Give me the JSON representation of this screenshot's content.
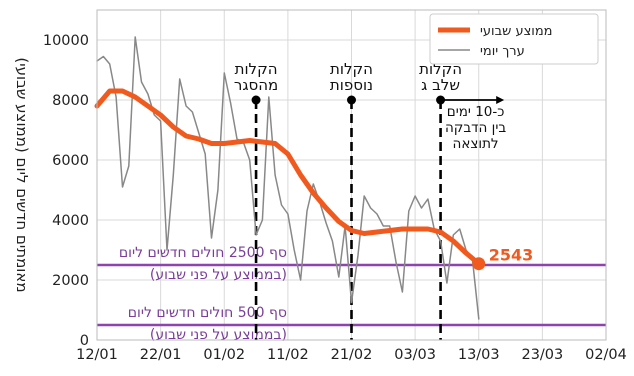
{
  "chart_data": {
    "type": "line",
    "title": "",
    "ylabel": "מאומתים חדשים ליום (ממוצע שבועי)",
    "xlabel": "",
    "x_ticks": [
      "12/01",
      "22/01",
      "01/02",
      "11/02",
      "21/02",
      "03/03",
      "13/03",
      "23/03",
      "02/04"
    ],
    "y_ticks": [
      "0",
      "2000",
      "4000",
      "6000",
      "8000",
      "10000"
    ],
    "ylim": [
      0,
      11000
    ],
    "grid": true,
    "legend": {
      "placement": "top-right",
      "entries": [
        "ממוצע שבועי",
        "ערך יומי"
      ]
    },
    "series": [
      {
        "name": "ממוצע שבועי",
        "color": "#f05a1e",
        "x": [
          "12/01",
          "14/01",
          "16/01",
          "18/01",
          "20/01",
          "22/01",
          "24/01",
          "26/01",
          "28/01",
          "30/01",
          "01/02",
          "03/02",
          "05/02",
          "07/02",
          "09/02",
          "11/02",
          "13/02",
          "15/02",
          "17/02",
          "19/02",
          "21/02",
          "23/02",
          "25/02",
          "27/02",
          "01/03",
          "03/03",
          "05/03",
          "07/03",
          "09/03",
          "11/03",
          "13/03"
        ],
        "values": [
          7800,
          8300,
          8300,
          8100,
          7800,
          7500,
          7100,
          6800,
          6700,
          6550,
          6550,
          6600,
          6650,
          6600,
          6550,
          6200,
          5500,
          4900,
          4400,
          3950,
          3650,
          3550,
          3600,
          3650,
          3700,
          3700,
          3700,
          3600,
          3300,
          2900,
          2543
        ]
      },
      {
        "name": "ערך יומי",
        "color": "#888888",
        "x": [
          "12/01",
          "13/01",
          "14/01",
          "15/01",
          "16/01",
          "17/01",
          "18/01",
          "19/01",
          "20/01",
          "21/01",
          "22/01",
          "23/01",
          "24/01",
          "25/01",
          "26/01",
          "27/01",
          "28/01",
          "29/01",
          "30/01",
          "31/01",
          "01/02",
          "02/02",
          "03/02",
          "04/02",
          "05/02",
          "06/02",
          "07/02",
          "08/02",
          "09/02",
          "10/02",
          "11/02",
          "12/02",
          "13/02",
          "14/02",
          "15/02",
          "16/02",
          "17/02",
          "18/02",
          "19/02",
          "20/02",
          "21/02",
          "22/02",
          "23/02",
          "24/02",
          "25/02",
          "26/02",
          "27/02",
          "28/02",
          "01/03",
          "02/03",
          "03/03",
          "04/03",
          "05/03",
          "06/03",
          "07/03",
          "08/03",
          "09/03",
          "10/03",
          "11/03",
          "12/03",
          "13/03"
        ],
        "values": [
          9300,
          9450,
          9200,
          8100,
          5100,
          5800,
          10100,
          8600,
          8200,
          7500,
          7300,
          3000,
          5500,
          8700,
          7800,
          7600,
          6900,
          6200,
          3400,
          5000,
          8900,
          7900,
          6700,
          6600,
          6000,
          3500,
          4000,
          8100,
          5500,
          4500,
          4200,
          3000,
          2000,
          4300,
          5200,
          4600,
          3900,
          3300,
          2100,
          3800,
          1250,
          2800,
          4800,
          4400,
          4200,
          3800,
          3800,
          2600,
          1600,
          4300,
          4800,
          4400,
          4700,
          3700,
          3300,
          1900,
          3500,
          3700,
          3000,
          2700,
          700
        ]
      }
    ],
    "end_label": {
      "x": "13/03",
      "value": 2543,
      "text": "2543"
    },
    "events": [
      {
        "x": "06/02",
        "label": [
          "הקלות",
          "מהסגר"
        ]
      },
      {
        "x": "21/02",
        "label": [
          "הקלות",
          "נוספות"
        ]
      },
      {
        "x": "07/03",
        "label": [
          "הקלות",
          "שלב ג"
        ]
      }
    ],
    "arrow_note": {
      "x_from": "07/03",
      "x_to": "17/03",
      "label": [
        "כ-10 ימים",
        "בין הדבקה",
        "לתוצאה"
      ]
    },
    "thresholds": [
      {
        "value": 2500,
        "color": "#8e44ad",
        "label_top": "סף 2500 חולים חדשים ליום",
        "label_bottom": "(בממוצע על פני שבוע)"
      },
      {
        "value": 500,
        "color": "#8e44ad",
        "label_top": "סף 500 חולים חדשים ליום",
        "label_bottom": "(בממוצע על פני שבוע)"
      }
    ]
  }
}
